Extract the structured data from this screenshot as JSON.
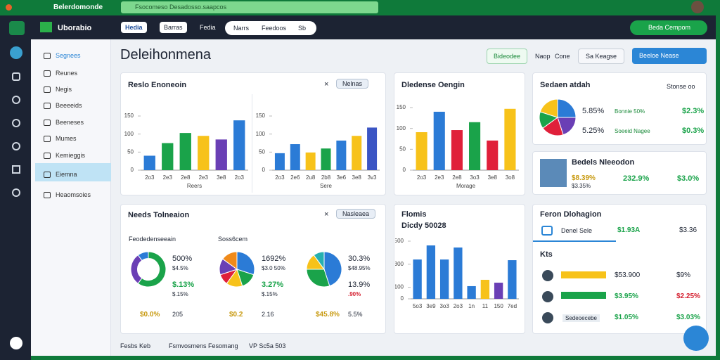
{
  "browser": {
    "tab_title": "Belerdomonde",
    "url": "Fsocomeso Desadosso.saapcos"
  },
  "header": {
    "app_name": "Uborabio",
    "tabs": [
      "Hedia",
      "Barras",
      "Fedia"
    ],
    "pill_tabs": [
      "Narrs",
      "Feedoos",
      "Sb"
    ],
    "action": "Beda Cempom"
  },
  "sidebar": {
    "items": [
      "Segnees",
      "Reunes",
      "Negis",
      "Beeeeids",
      "Beeneses",
      "Mumes",
      "Kemieggis",
      "Eiemna",
      "Heaomsoies"
    ]
  },
  "page": {
    "title": "Deleihonmena",
    "buttons": [
      "Bideodee",
      "Naop",
      "Cone",
      "Sa Keagse",
      "Beeloe Nease"
    ]
  },
  "cards": {
    "revenue": {
      "title": "Reslo Enoneoin",
      "filter": "Nelnas"
    },
    "defense": {
      "title": "Dledense Oengin"
    },
    "status": {
      "title": "Sedaen atdah",
      "link": "Stonse oo",
      "rows": [
        {
          "pct": "5.85%",
          "name": "Bonnie 50%",
          "value": "$2.3%"
        },
        {
          "pct": "5.25%",
          "name": "Soeeid Nagee",
          "value": "$0.3%"
        }
      ]
    },
    "profile": {
      "title": "Bedels Nleeodon",
      "line1": "$8.39%",
      "line2": "$3.35%",
      "pct": "232.9%",
      "value": "$3.0%"
    },
    "needs": {
      "title": "Needs Tolneaion",
      "filter": "Nasleaea",
      "sections": [
        {
          "title": "Feodedenseeain",
          "pct1": "500%",
          "sub1": "$4.5%",
          "pct2": "$.13%",
          "sub2": "$.15%",
          "foot1": "$0.0%",
          "foot2": "205"
        },
        {
          "title": "Soss6cem",
          "pct1": "1692%",
          "sub1": "$3.0 50%",
          "pct2": "3.27%",
          "sub2": "$.15%",
          "foot1": "$0.2",
          "foot2": "2.16"
        },
        {
          "title": "",
          "pct1": "30.3%",
          "sub1": "$48.95%",
          "pct2": "13.9%",
          "sub2": ".90%",
          "foot1": "$45.8%",
          "foot2": "5.5%"
        }
      ]
    },
    "flomis": {
      "title": "Flomis",
      "subtitle": "Dicdy 50028"
    },
    "feron": {
      "title": "Feron Dlohagion",
      "row": {
        "label": "Denel Sele",
        "value": "$1.93A",
        "right": "$3.36"
      },
      "sub": "Kts",
      "list": [
        {
          "value": "$53.900",
          "right": "$9%"
        },
        {
          "value": "$3.95%",
          "right": "$2.25%"
        },
        {
          "label": "Sedeoecebe",
          "value": "$1.05%",
          "right": "$3.03%"
        }
      ]
    }
  },
  "footer": [
    "Fesbs Keb",
    "Fsmvosmens Fesomang",
    "VP Sc5a 503"
  ],
  "chart_data": [
    {
      "type": "bar",
      "xlabel": "Reers",
      "categories": [
        "2o3",
        "2e3",
        "2e8",
        "2e3",
        "3e8",
        "2o3"
      ],
      "values": [
        40,
        75,
        103,
        95,
        85,
        138
      ],
      "colors": [
        "#2b7bd6",
        "#1aa34a",
        "#1aa34a",
        "#f7c21a",
        "#6a3fb5",
        "#2b7bd6"
      ],
      "ylim": [
        0,
        150
      ],
      "yticks": [
        0,
        50,
        100,
        150
      ]
    },
    {
      "type": "bar",
      "xlabel": "Sere",
      "categories": [
        "2o3",
        "2e6",
        "2u8",
        "2b8",
        "3e6",
        "3e8",
        "3v3"
      ],
      "values": [
        47,
        72,
        49,
        60,
        82,
        95,
        118
      ],
      "colors": [
        "#2b7bd6",
        "#2b7bd6",
        "#f7c21a",
        "#1aa34a",
        "#2b7bd6",
        "#f7c21a",
        "#3b55c4"
      ],
      "ylim": [
        0,
        150
      ],
      "yticks": [
        0,
        50,
        100,
        150
      ]
    },
    {
      "type": "bar",
      "xlabel": "Morage",
      "categories": [
        "2o3",
        "2e3",
        "2e8",
        "3o3",
        "3e8",
        "3o8"
      ],
      "values": [
        91,
        140,
        96,
        115,
        71,
        147
      ],
      "colors": [
        "#f7c21a",
        "#2b7bd6",
        "#e0203a",
        "#1aa34a",
        "#e0203a",
        "#f7c21a"
      ],
      "ylim": [
        0,
        150
      ],
      "yticks": [
        0,
        50,
        100,
        150
      ]
    },
    {
      "type": "bar",
      "xlabel": "",
      "categories": [
        "5o3",
        "3e9",
        "3o3",
        "2o3",
        "1n",
        "11",
        "150",
        "7ed"
      ],
      "values": [
        341,
        463,
        341,
        445,
        110,
        165,
        140,
        335
      ],
      "colors": [
        "#2b7bd6",
        "#2b7bd6",
        "#2b7bd6",
        "#2b7bd6",
        "#2b7bd6",
        "#f7c21a",
        "#6a3fb5",
        "#2b7bd6"
      ],
      "ylim": [
        0,
        500
      ],
      "yticks": [
        0,
        100,
        300,
        500
      ]
    },
    {
      "type": "pie",
      "values": [
        25,
        20,
        20,
        15,
        20
      ],
      "colors": [
        "#2b7bd6",
        "#6a3fb5",
        "#e0203a",
        "#1aa34a",
        "#f7c21a"
      ]
    },
    {
      "type": "donut",
      "values": [
        60,
        30,
        10
      ],
      "colors": [
        "#1aa34a",
        "#6a3fb5",
        "#2b7bd6"
      ]
    },
    {
      "type": "pie",
      "values": [
        30,
        15,
        15,
        10,
        15,
        15
      ],
      "colors": [
        "#2b7bd6",
        "#1aa34a",
        "#f7c21a",
        "#e0203a",
        "#6a3fb5",
        "#f08a1a"
      ]
    },
    {
      "type": "pie",
      "values": [
        45,
        30,
        15,
        10
      ],
      "colors": [
        "#2b7bd6",
        "#1aa34a",
        "#f7c21a",
        "#26b0b0"
      ]
    }
  ]
}
